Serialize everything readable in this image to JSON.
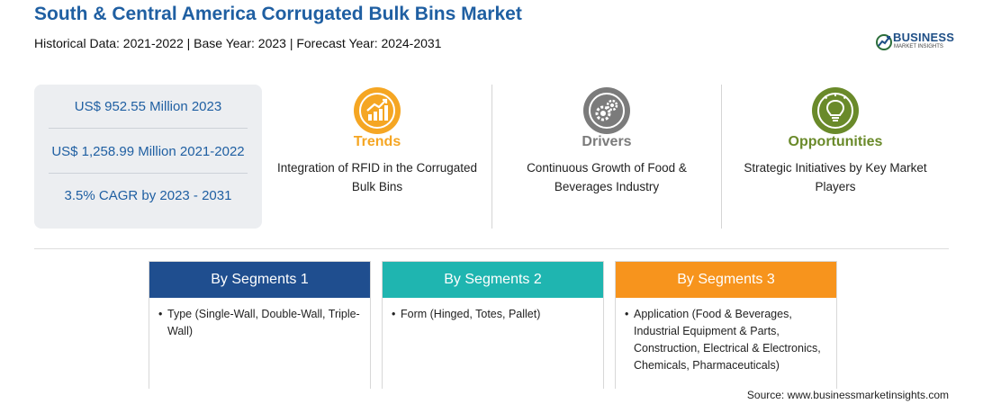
{
  "header": {
    "title": "South & Central America Corrugated Bulk Bins Market",
    "subtitle": "Historical Data: 2021-2022 | Base Year: 2023 | Forecast Year: 2024-2031"
  },
  "logo": {
    "word": "BUSINESS",
    "sub": "MARKET INSIGHTS"
  },
  "stats": [
    "US$ 952.55 Million 2023",
    "US$ 1,258.99 Million 2021-2022",
    "3.5% CAGR by 2023 - 2031"
  ],
  "cards": [
    {
      "heading": "Trends",
      "color": "#f5a623",
      "line1": "Integration of RFID in the Corrugated",
      "line2": "Bulk Bins",
      "icon": "chart-up-icon"
    },
    {
      "heading": "Drivers",
      "color": "#7b7b7b",
      "line1": "Continuous Growth of Food &",
      "line2": "Beverages Industry",
      "icon": "gears-icon"
    },
    {
      "heading": "Opportunities",
      "color": "#6a8a2a",
      "line1": "Strategic Initiatives by Key Market",
      "line2": "Players",
      "icon": "lightbulb-icon"
    }
  ],
  "segments": [
    {
      "heading": "By Segments 1",
      "color": "#1f4e8f",
      "bullet": "•",
      "line1": "Type (Single-Wall, Double-Wall, Triple-",
      "line2": "Wall)"
    },
    {
      "heading": "By Segments 2",
      "color": "#1fb5b0",
      "bullet": "•",
      "line1": "Form (Hinged, Totes, Pallet)"
    },
    {
      "heading": "By Segments 3",
      "color": "#f7941d",
      "bullet": "•",
      "line1": "Application (Food & Beverages,",
      "line2": "Industrial Equipment & Parts,",
      "line3": "Construction, Electrical & Electronics,",
      "line4": "Chemicals, Pharmaceuticals)"
    }
  ],
  "source": "Source: www.businessmarketinsights.com"
}
